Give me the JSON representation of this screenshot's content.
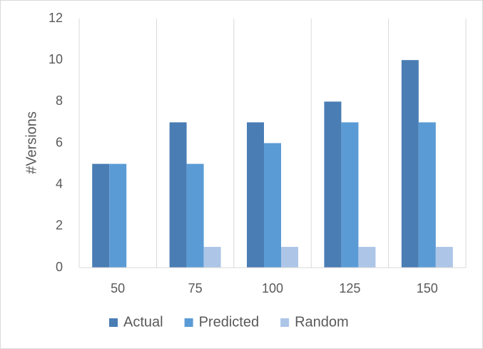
{
  "chart_data": {
    "type": "bar",
    "y_label": "#Versions",
    "categories": [
      "50",
      "75",
      "100",
      "125",
      "150"
    ],
    "series": [
      {
        "name": "Actual",
        "color": "#4a7db4",
        "values": [
          5,
          7,
          7,
          8,
          10
        ]
      },
      {
        "name": "Predicted",
        "color": "#5b9bd5",
        "values": [
          5,
          5,
          6,
          7,
          7
        ]
      },
      {
        "name": "Random",
        "color": "#adc6e8",
        "values": [
          0,
          1,
          1,
          1,
          1
        ]
      }
    ],
    "ylim": [
      0,
      12
    ],
    "yticks": [
      0,
      2,
      4,
      6,
      8,
      10,
      12
    ],
    "grid": true,
    "legend": "bottom"
  }
}
